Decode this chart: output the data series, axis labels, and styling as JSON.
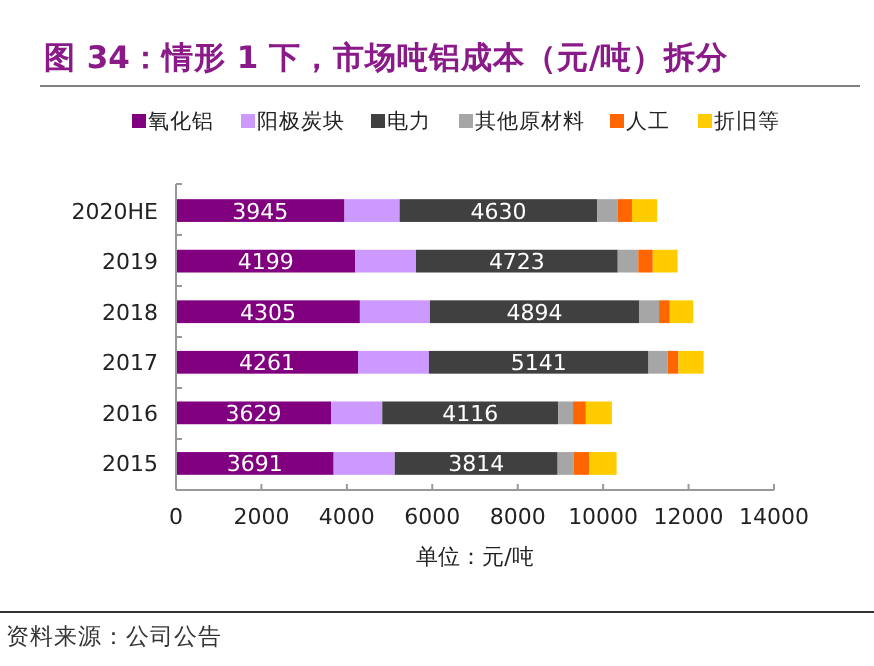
{
  "chart_data": {
    "type": "bar",
    "orientation": "horizontal",
    "stacked": true,
    "title": "图 34：情形 1 下，市场吨铝成本（元/吨）拆分",
    "xlabel": "单位：元/吨",
    "categories": [
      "2020HE",
      "2019",
      "2018",
      "2017",
      "2016",
      "2015"
    ],
    "series": [
      {
        "name": "氧化铝",
        "color": "#800080",
        "values": [
          3945,
          4199,
          4305,
          4261,
          3629,
          3691
        ],
        "value_labels": [
          "3945",
          "4199",
          "4305",
          "4261",
          "3629",
          "3691"
        ]
      },
      {
        "name": "阳极炭块",
        "color": "#cc99ff",
        "values": [
          1290,
          1420,
          1640,
          1660,
          1200,
          1430
        ]
      },
      {
        "name": "电力",
        "color": "#404040",
        "values": [
          4630,
          4723,
          4894,
          5141,
          4116,
          3814
        ],
        "value_labels": [
          "4630",
          "4723",
          "4894",
          "5141",
          "4116",
          "3814"
        ]
      },
      {
        "name": "其他原材料",
        "color": "#a6a6a6",
        "values": [
          480,
          480,
          470,
          450,
          350,
          370
        ]
      },
      {
        "name": "人工",
        "color": "#ff6600",
        "values": [
          330,
          340,
          250,
          250,
          300,
          370
        ]
      },
      {
        "name": "折旧等",
        "color": "#ffcc00",
        "values": [
          590,
          580,
          550,
          590,
          610,
          640
        ]
      }
    ],
    "xlim": [
      0,
      14000
    ],
    "xticks": [
      0,
      2000,
      4000,
      6000,
      8000,
      10000,
      12000,
      14000
    ],
    "grid": false,
    "legend": "top",
    "annotations": [
      "资料来源：公司公告"
    ]
  }
}
